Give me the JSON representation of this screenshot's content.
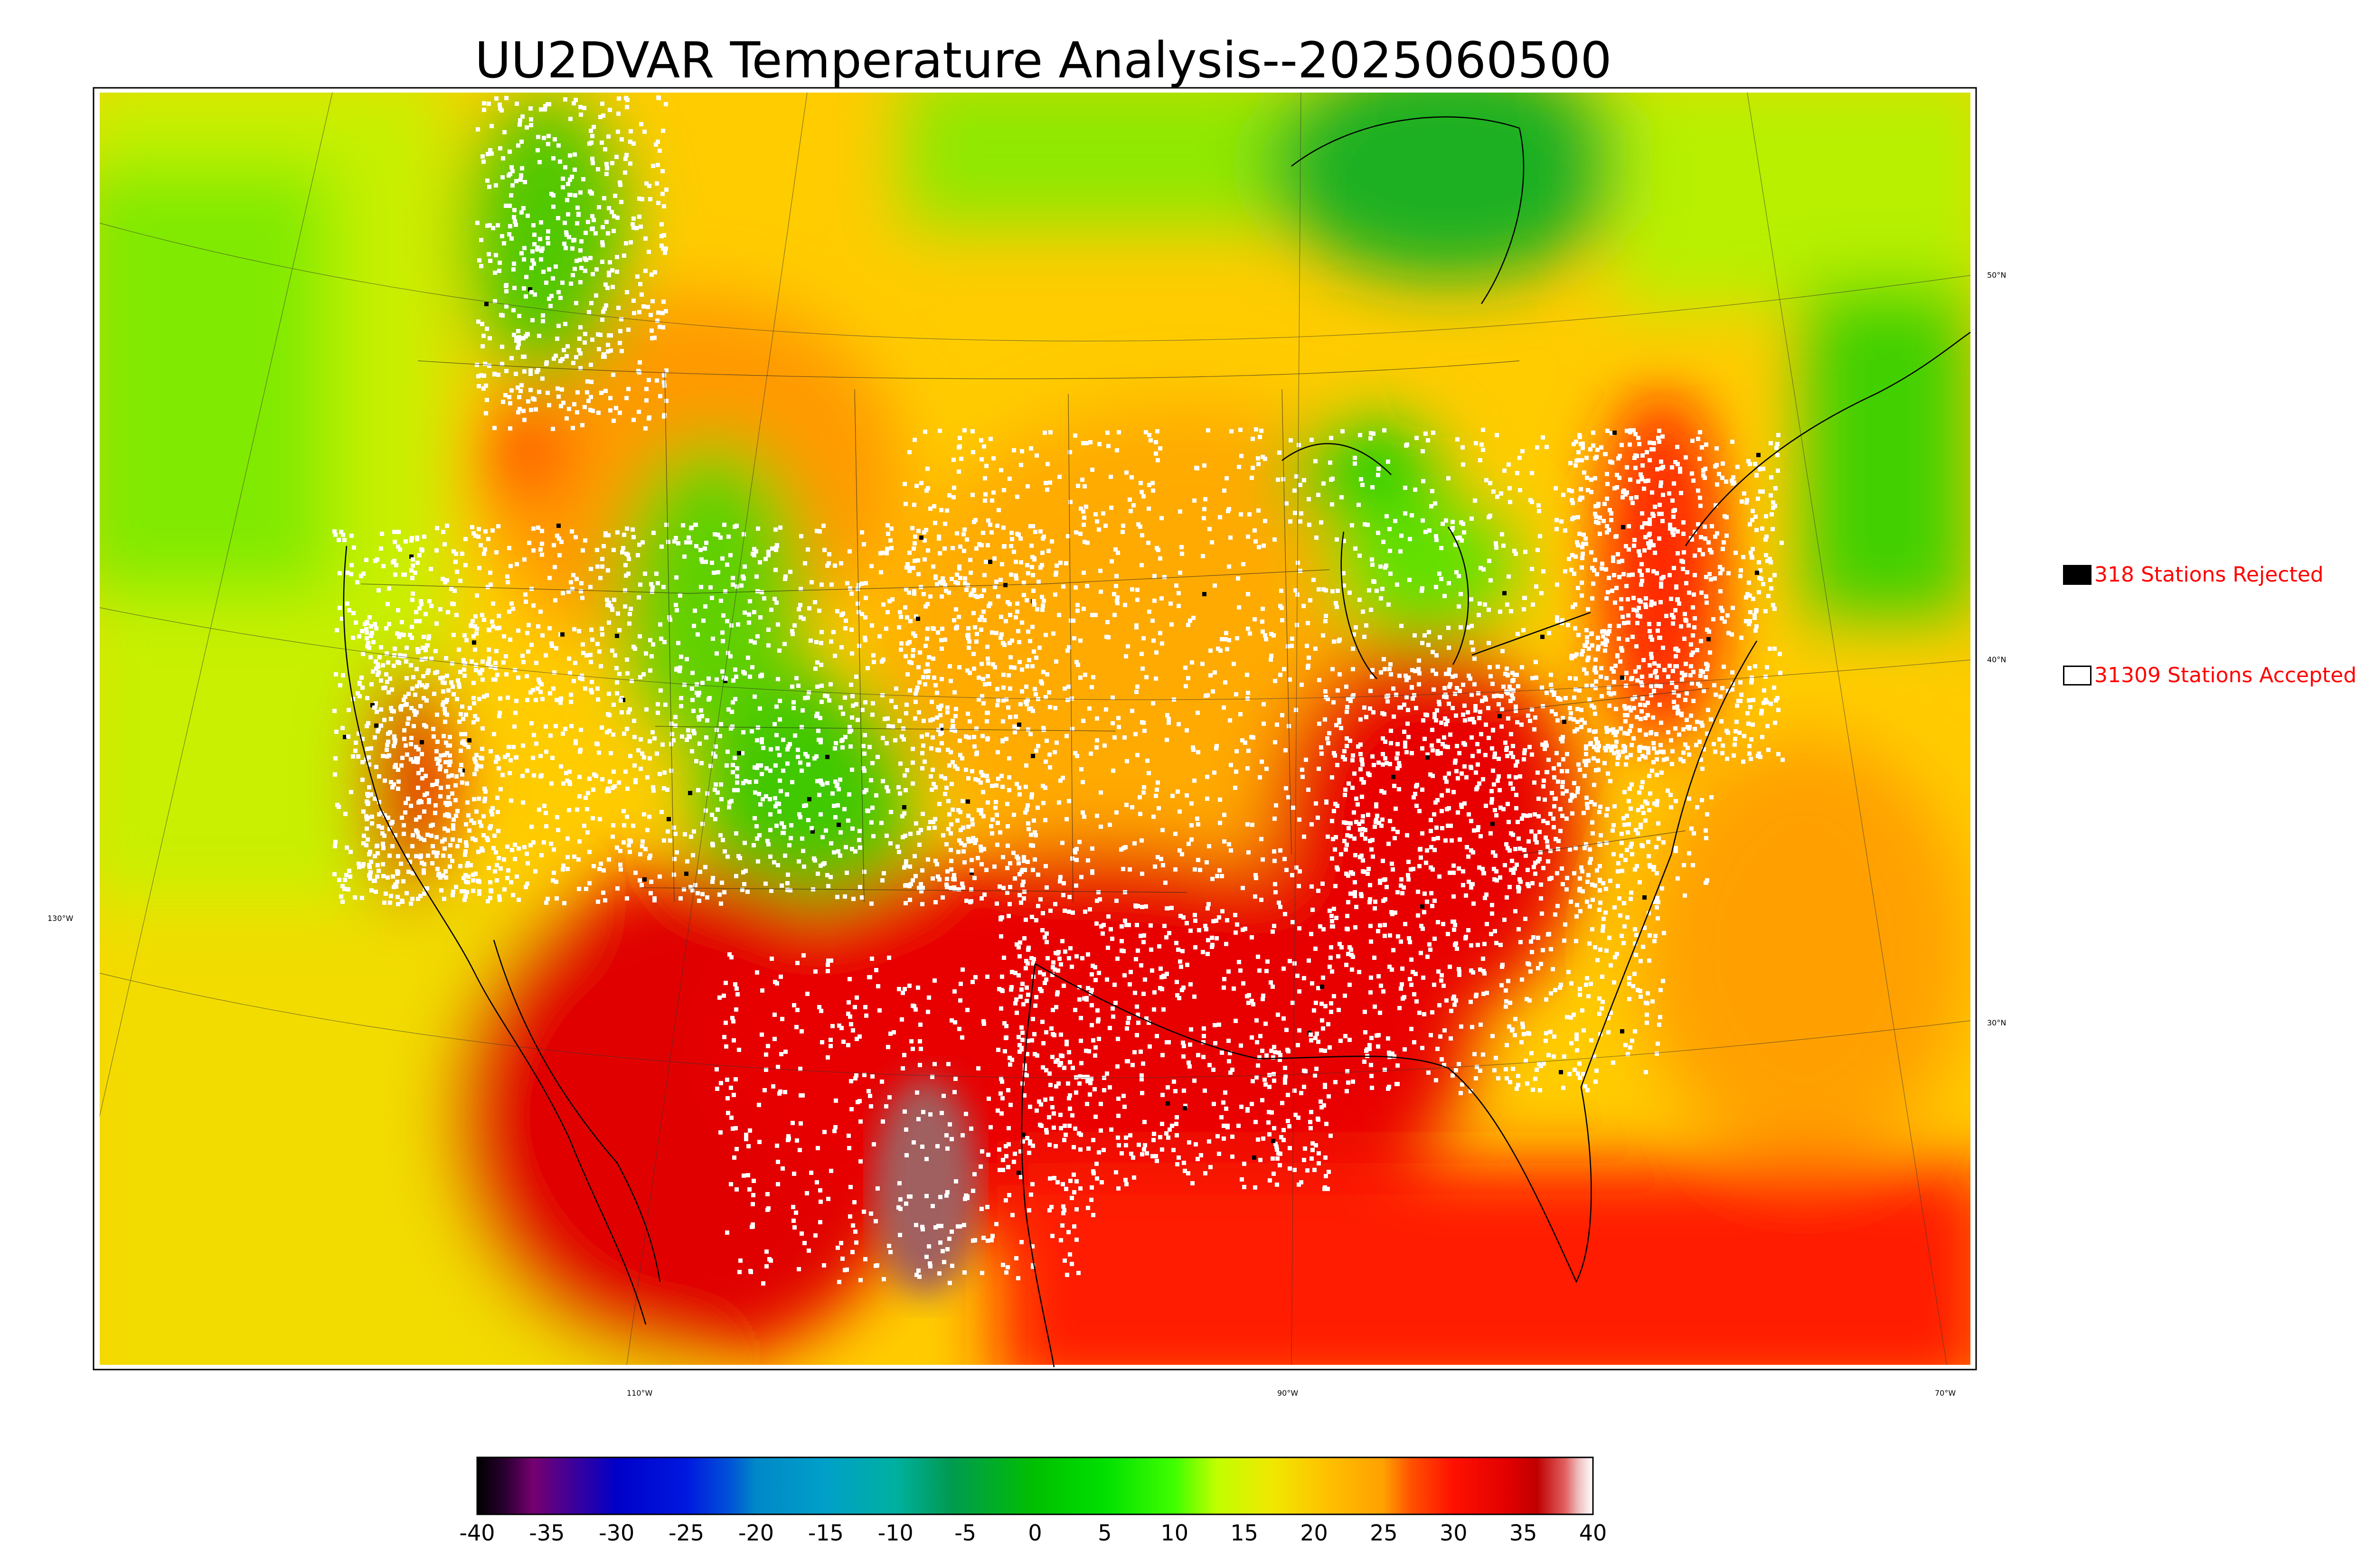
{
  "title": "UU2DVAR Temperature Analysis--2025060500",
  "legend": {
    "rejected": {
      "label": "318 Stations Rejected",
      "swatch": "#000000"
    },
    "accepted": {
      "label": "31309 Stations Accepted",
      "swatch": "#ffffff"
    }
  },
  "lat_labels": [
    "50°N",
    "40°N",
    "30°N"
  ],
  "lon_labels": [
    "130°W",
    "110°W",
    "90°W",
    "70°W"
  ],
  "colorbar": {
    "ticks": [
      "-40",
      "-35",
      "-30",
      "-25",
      "-20",
      "-15",
      "-10",
      "-5",
      "0",
      "5",
      "10",
      "15",
      "20",
      "25",
      "30",
      "35",
      "40"
    ],
    "min": -40,
    "max": 40,
    "stops": [
      {
        "v": -40,
        "c": "#000000"
      },
      {
        "v": -38,
        "c": "#2a0030"
      },
      {
        "v": -36,
        "c": "#760070"
      },
      {
        "v": -30,
        "c": "#0000c8"
      },
      {
        "v": -25,
        "c": "#0018e0"
      },
      {
        "v": -22,
        "c": "#0050d8"
      },
      {
        "v": -20,
        "c": "#0088c8"
      },
      {
        "v": -15,
        "c": "#00a0c8"
      },
      {
        "v": -10,
        "c": "#00b0a0"
      },
      {
        "v": -6,
        "c": "#009a50"
      },
      {
        "v": 0,
        "c": "#00c000"
      },
      {
        "v": 5,
        "c": "#00e000"
      },
      {
        "v": 10,
        "c": "#40ff00"
      },
      {
        "v": 13,
        "c": "#c0ff00"
      },
      {
        "v": 17,
        "c": "#f0e800"
      },
      {
        "v": 21,
        "c": "#ffc000"
      },
      {
        "v": 25,
        "c": "#ffa000"
      },
      {
        "v": 27,
        "c": "#ff5000"
      },
      {
        "v": 30,
        "c": "#ff1000"
      },
      {
        "v": 34,
        "c": "#e00000"
      },
      {
        "v": 36,
        "c": "#c00000"
      },
      {
        "v": 38,
        "c": "#e06060"
      },
      {
        "v": 39,
        "c": "#f0c0c0"
      },
      {
        "v": 40,
        "c": "#ffffff"
      }
    ]
  },
  "colors": {
    "hot": "#e80000",
    "warm": "#ff9a00",
    "mild": "#f5e600",
    "cool": "#7ae800",
    "cold": "#10b020",
    "station_accepted": "#ffffff",
    "station_rejected": "#000000"
  }
}
